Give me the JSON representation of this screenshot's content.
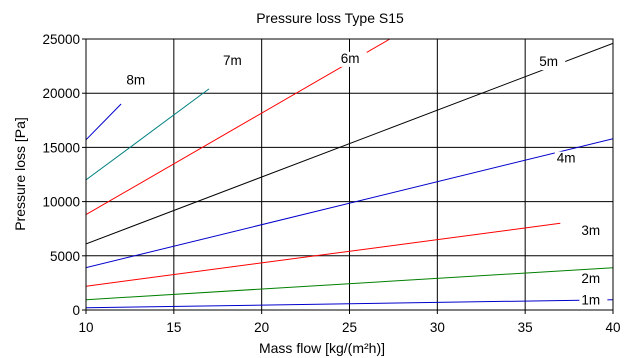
{
  "chart_data": {
    "type": "line",
    "title": "Pressure loss  Type S15",
    "xlabel": "Mass flow  [kg/(m²h)]",
    "ylabel": "Pressure loss  [Pa]",
    "xlim": [
      10,
      40
    ],
    "ylim": [
      0,
      25000
    ],
    "xticks": [
      "10",
      "15",
      "20",
      "25",
      "30",
      "35",
      "40"
    ],
    "yticks": [
      "0",
      "5000",
      "10000",
      "15000",
      "20000",
      "25000"
    ],
    "grid": true,
    "legend": "none",
    "series": [
      {
        "name": "1m",
        "color": "#0000cc",
        "x": [
          10,
          40
        ],
        "y": [
          200,
          950
        ]
      },
      {
        "name": "2m",
        "color": "#008000",
        "x": [
          10,
          40
        ],
        "y": [
          950,
          3900
        ]
      },
      {
        "name": "3m",
        "color": "#ff0000",
        "x": [
          10,
          37
        ],
        "y": [
          2200,
          8000
        ]
      },
      {
        "name": "4m",
        "color": "#0000cc",
        "x": [
          10,
          40
        ],
        "y": [
          3900,
          15800
        ]
      },
      {
        "name": "5m",
        "color": "#000000",
        "x": [
          10,
          40
        ],
        "y": [
          6100,
          24600
        ]
      },
      {
        "name": "6m",
        "color": "#ff0000",
        "x": [
          10,
          27.3
        ],
        "y": [
          8800,
          25000
        ]
      },
      {
        "name": "7m",
        "color": "#008080",
        "x": [
          10,
          17
        ],
        "y": [
          12000,
          20400
        ]
      },
      {
        "name": "8m",
        "color": "#0000cc",
        "x": [
          10,
          12
        ],
        "y": [
          15700,
          19000
        ]
      }
    ]
  }
}
